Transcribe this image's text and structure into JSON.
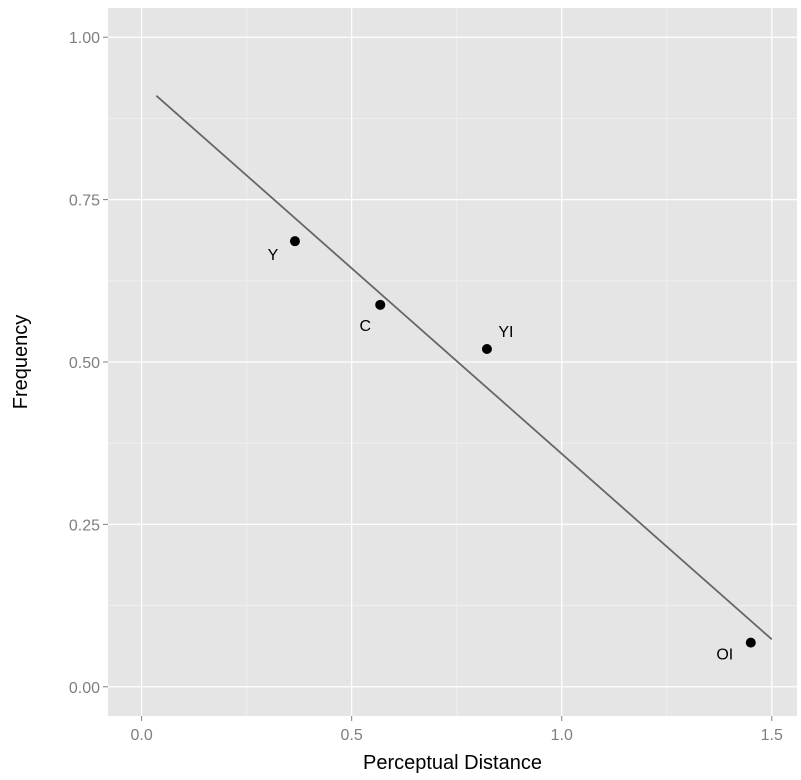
{
  "chart_data": {
    "type": "scatter",
    "title": "",
    "xlabel": "Perceptual Distance",
    "ylabel": "Frequency",
    "xlim": [
      -0.08,
      1.56
    ],
    "ylim": [
      -0.045,
      1.045
    ],
    "x_ticks": [
      0.0,
      0.5,
      1.0,
      1.5
    ],
    "x_tick_labels": [
      "0.0",
      "0.5",
      "1.0",
      "1.5"
    ],
    "y_ticks": [
      0.0,
      0.25,
      0.5,
      0.75,
      1.0
    ],
    "y_tick_labels": [
      "0.00",
      "0.25",
      "0.50",
      "0.75",
      "1.00"
    ],
    "grid": true,
    "points": [
      {
        "label": "Y",
        "x": 0.365,
        "y": 0.686
      },
      {
        "label": "C",
        "x": 0.568,
        "y": 0.588
      },
      {
        "label": "YI",
        "x": 0.822,
        "y": 0.52
      },
      {
        "label": "OI",
        "x": 1.45,
        "y": 0.068
      }
    ],
    "fit_line": {
      "x": [
        0.035,
        1.5
      ],
      "y": [
        0.91,
        0.073
      ]
    },
    "colors": {
      "panel_background": "#e5e5e5",
      "grid_major": "#ffffff",
      "grid_minor": "#f0f0f0",
      "point": "#000000",
      "fit_line": "#666666",
      "tick_label": "#7f7f7f"
    }
  }
}
